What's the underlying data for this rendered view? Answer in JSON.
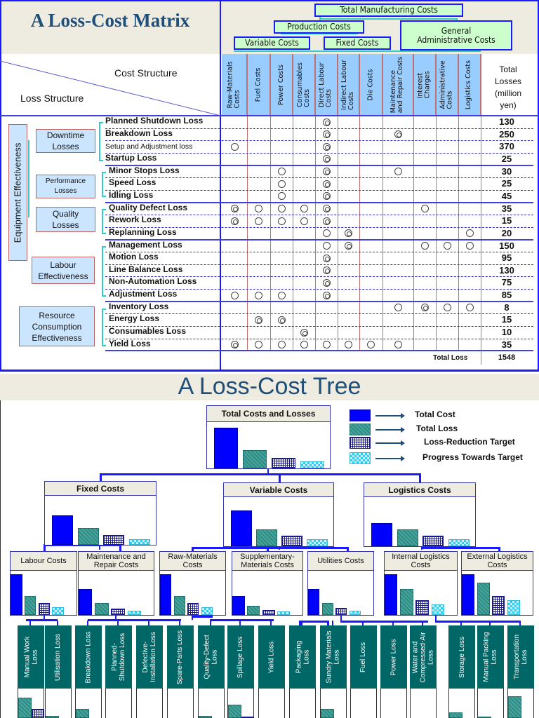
{
  "matrix": {
    "title": "A Loss-Cost Matrix",
    "cost_structure_label": "Cost Structure",
    "loss_structure_label": "Loss Structure",
    "cost_tree": {
      "total": "Total Manufacturing Costs",
      "production": "Production Costs",
      "general_admin": "General Administrative Costs",
      "variable": "Variable Costs",
      "fixed": "Fixed Costs"
    },
    "columns": [
      "Raw-Materials\nCosts",
      "Fuel Costs",
      "Power Costs",
      "Consumables\nCosts",
      "Direct Labour\nCosts",
      "Indirect Labour\nCosts",
      "Die Costs",
      "Maintenance\nand Repair Costs",
      "Interest\nCharges",
      "Administrative\nCosts",
      "Logistics Costs"
    ],
    "total_header": "Total Losses (million yen)",
    "categories": {
      "equipment": "Equipment Effectiveness",
      "downtime": "Downtime Losses",
      "performance": "Performance Losses",
      "quality": "Quality Losses",
      "labour": "Labour Effectiveness",
      "resource": "Resource Consumption Effectiveness"
    },
    "legend_marks": {
      "d": "double-circle",
      "o": "circle"
    },
    "rows": [
      {
        "label": "Planned Shutdown Loss",
        "marks": "....d......",
        "total": "130"
      },
      {
        "label": "Breakdown Loss",
        "marks": "....d..d...",
        "total": "250"
      },
      {
        "label": "Setup and Adjustment loss",
        "marks": "o...d......",
        "total": "370"
      },
      {
        "label": "Startup Loss",
        "marks": "....d......",
        "total": "25"
      },
      {
        "label": "Minor Stops Loss",
        "marks": "..o.d..o...",
        "total": "30"
      },
      {
        "label": "Speed Loss",
        "marks": "..o.d......",
        "total": "25"
      },
      {
        "label": "Idling Loss",
        "marks": "..o.d......",
        "total": "45"
      },
      {
        "label": "Quality Defect Loss",
        "marks": "doood...o..",
        "total": "35"
      },
      {
        "label": "Rework Loss",
        "marks": "doood......",
        "total": "15"
      },
      {
        "label": "Replanning Loss",
        "marks": "....od....o",
        "total": "20"
      },
      {
        "label": "Management Loss",
        "marks": "....od..ooo",
        "total": "150"
      },
      {
        "label": "Motion Loss",
        "marks": "....d......",
        "total": "95"
      },
      {
        "label": "Line Balance Loss",
        "marks": "....d......",
        "total": "130"
      },
      {
        "label": "Non-Automation Loss",
        "marks": "....d......",
        "total": "75"
      },
      {
        "label": "Adjustment Loss",
        "marks": "ooo.d......",
        "total": "85"
      },
      {
        "label": "Inventory Loss",
        "marks": ".......odoo",
        "total": "8"
      },
      {
        "label": "Energy Loss",
        "marks": ".dd........",
        "total": "15"
      },
      {
        "label": "Consumables Loss",
        "marks": "...d.......",
        "total": "10"
      },
      {
        "label": "Yield Loss",
        "marks": "dooooooo...",
        "total": "35"
      }
    ],
    "total_loss_label": "Total Loss",
    "total_loss": "1548"
  },
  "tree": {
    "title": "A Loss-Cost Tree",
    "legend": [
      "Total Cost",
      "Total Loss",
      "Loss-Reduction Target",
      "Progress Towards Target"
    ],
    "colors": {
      "total_cost": "#0000ff",
      "total_loss": "#2e8b84",
      "target": "#1a1a8c",
      "progress": "#33ccee"
    },
    "nodes": [
      {
        "label": "Total Costs and Losses",
        "levels": [
          0.9,
          0.4,
          0.24,
          0.16
        ]
      },
      {
        "label": "Fixed Costs",
        "levels": [
          0.62,
          0.35,
          0.2,
          0.12
        ]
      },
      {
        "label": "Variable Costs",
        "levels": [
          0.75,
          0.35,
          0.22,
          0.14
        ]
      },
      {
        "label": "Logistics Costs",
        "levels": [
          0.48,
          0.35,
          0.22,
          0.14
        ]
      },
      {
        "label": "Labour Costs",
        "levels": [
          0.95,
          0.45,
          0.28,
          0.18
        ]
      },
      {
        "label": "Maintenance and Repair Costs",
        "levels": [
          0.6,
          0.28,
          0.14,
          0.1
        ]
      },
      {
        "label": "Raw-Materials Costs",
        "levels": [
          0.95,
          0.45,
          0.28,
          0.18
        ]
      },
      {
        "label": "Supplementary-Materials Costs",
        "levels": [
          0.45,
          0.22,
          0.12,
          0.08
        ]
      },
      {
        "label": "Utilities Costs",
        "levels": [
          0.6,
          0.28,
          0.16,
          0.1
        ]
      },
      {
        "label": "Internal Logistics Costs",
        "levels": [
          0.95,
          0.6,
          0.35,
          0.25
        ]
      },
      {
        "label": "External Logistics Costs",
        "levels": [
          0.95,
          0.75,
          0.45,
          0.35
        ]
      }
    ],
    "leaves": [
      {
        "label": "Manual Work\nLoss",
        "loss": 0.7,
        "target": 0.3
      },
      {
        "label": "Utilisation Loss",
        "loss": 0.06,
        "target": 0
      },
      {
        "label": "Breakdown Loss",
        "loss": 0.3,
        "target": 0
      },
      {
        "label": "Planned-\nShutdown Loss",
        "loss": 0,
        "target": 0
      },
      {
        "label": "Defective-\nInstallation Loss",
        "loss": 0,
        "target": 0
      },
      {
        "label": "Spare-Parts Loss",
        "loss": 0,
        "target": 0
      },
      {
        "label": "Quality-Defect\nLoss",
        "loss": 0.06,
        "target": 0
      },
      {
        "label": "Spillage Loss",
        "loss": 0.45,
        "target": 0.05
      },
      {
        "label": "Yield Loss",
        "loss": 0,
        "target": 0
      },
      {
        "label": "Packaging\nLoss",
        "loss": 0,
        "target": 0
      },
      {
        "label": "Sundry Materials\nLoss",
        "loss": 0.3,
        "target": 0
      },
      {
        "label": "Fuel Loss",
        "loss": 0,
        "target": 0
      },
      {
        "label": "Power Loss",
        "loss": 0,
        "target": 0
      },
      {
        "label": "Water and\nCompressed-Air\nLoss",
        "loss": 0,
        "target": 0
      },
      {
        "label": "Storage Loss",
        "loss": 0.2,
        "target": 0
      },
      {
        "label": "Manual Packing\nLoss",
        "loss": 0.05,
        "target": 0
      },
      {
        "label": "Transportation\nLoss",
        "loss": 0.75,
        "target": 0
      }
    ]
  }
}
